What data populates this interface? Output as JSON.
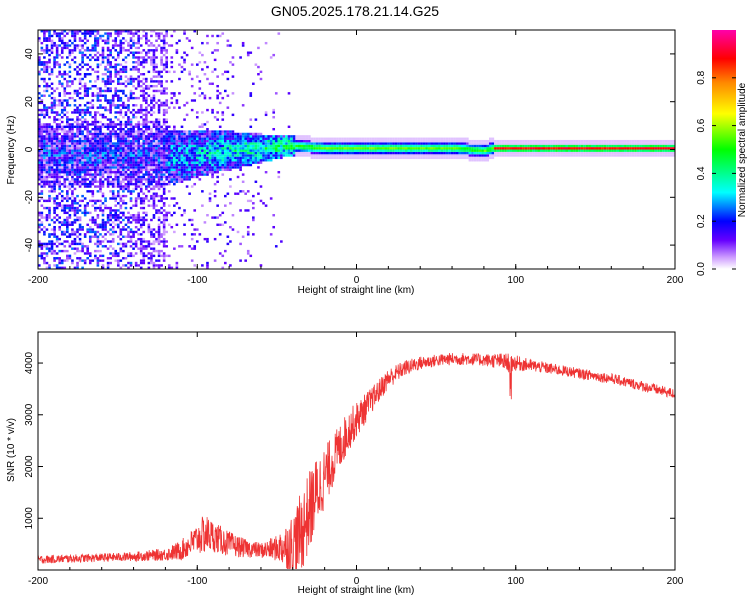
{
  "figure": {
    "title": "GN05.2025.178.21.14.G25"
  },
  "chart_data": [
    {
      "type": "heatmap",
      "title": "GN05.2025.178.21.14.G25",
      "xlabel": "Height of straight line (km)",
      "ylabel": "Frequency (Hz)",
      "xlim": [
        -200,
        200
      ],
      "ylim": [
        -50,
        50
      ],
      "xticks": [
        -200,
        -100,
        0,
        100,
        200
      ],
      "yticks": [
        -40,
        -20,
        0,
        20,
        40
      ],
      "colorbar": {
        "label": "Normalized spectral amplitude",
        "range": [
          0,
          1
        ],
        "ticks": [
          0.0,
          0.2,
          0.4,
          0.6,
          0.8
        ],
        "colormap": [
          "#ffffff",
          "#cc99ff",
          "#6600ff",
          "#0000ff",
          "#00ffff",
          "#00ff00",
          "#ffff00",
          "#ff8800",
          "#ff0000",
          "#ff00aa"
        ]
      },
      "description_regions": [
        {
          "x_range": [
            -200,
            -120
          ],
          "frequency_range": [
            -50,
            50
          ],
          "amplitude": [
            0.05,
            0.3
          ],
          "pattern": "broad noise"
        },
        {
          "x_range": [
            -150,
            -40
          ],
          "frequency_range": [
            -10,
            10
          ],
          "amplitude": [
            0.2,
            0.6
          ],
          "pattern": "converging band"
        },
        {
          "x_range": [
            -40,
            85
          ],
          "frequency_range": [
            -3,
            3
          ],
          "amplitude": [
            0.4,
            0.8
          ],
          "pattern": "narrow tone"
        },
        {
          "x_range": [
            85,
            200
          ],
          "frequency_range": [
            -1.5,
            1.5
          ],
          "amplitude": [
            0.6,
            1.0
          ],
          "pattern": "stable tone"
        }
      ],
      "ridge": {
        "x": [
          -150,
          -120,
          -100,
          -80,
          -60,
          -40,
          -20,
          0,
          20,
          40,
          60,
          80,
          85,
          100,
          150,
          200
        ],
        "frequency": [
          -3,
          -4,
          -2,
          -1,
          0,
          1,
          0,
          0,
          0,
          0,
          0,
          -1,
          0,
          0,
          0,
          0
        ]
      }
    },
    {
      "type": "line",
      "xlabel": "Height of straight line (km)",
      "ylabel": "SNR (10 * v/v)",
      "xlim": [
        -200,
        200
      ],
      "ylim": [
        0,
        4600
      ],
      "xticks": [
        -200,
        -100,
        0,
        100,
        200
      ],
      "yticks": [
        1000,
        2000,
        3000,
        4000
      ],
      "color": "#ee3333",
      "series": [
        {
          "x": [
            -200,
            -180,
            -160,
            -140,
            -120,
            -110,
            -100,
            -95,
            -90,
            -80,
            -70,
            -60,
            -50,
            -40,
            -35,
            -30,
            -25,
            -20,
            -15,
            -10,
            -5,
            0,
            5,
            10,
            15,
            20,
            30,
            40,
            50,
            60,
            70,
            80,
            90,
            95,
            100,
            110,
            120,
            140,
            160,
            180,
            200
          ],
          "y": [
            200,
            220,
            240,
            260,
            300,
            380,
            600,
            700,
            650,
            500,
            420,
            380,
            420,
            500,
            700,
            1100,
            1500,
            1800,
            2100,
            2400,
            2700,
            2900,
            3100,
            3300,
            3500,
            3700,
            3900,
            4000,
            4050,
            4080,
            4080,
            4060,
            4040,
            4000,
            4000,
            3950,
            3900,
            3800,
            3700,
            3550,
            3400
          ],
          "noise": [
            80,
            80,
            80,
            90,
            120,
            200,
            300,
            400,
            300,
            250,
            180,
            150,
            250,
            600,
            800,
            800,
            700,
            600,
            500,
            450,
            400,
            350,
            300,
            250,
            220,
            200,
            150,
            130,
            120,
            120,
            120,
            120,
            150,
            200,
            150,
            120,
            110,
            100,
            100,
            100,
            100
          ]
        }
      ]
    }
  ]
}
